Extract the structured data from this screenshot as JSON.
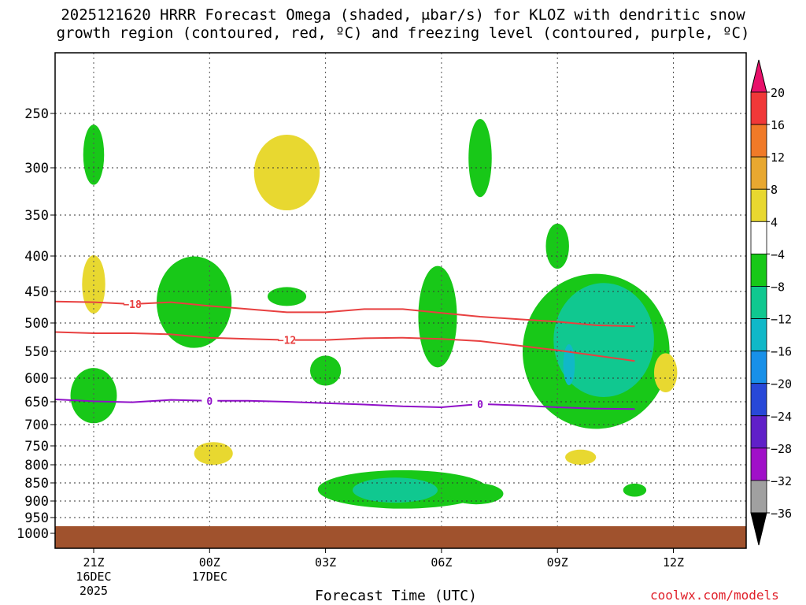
{
  "title": {
    "line1": "2025121620 HRRR Forecast Omega (shaded, μbar/s) for KLOZ with dendritic snow",
    "line2": "growth region (contoured, red, ºC) and freezing level (contoured, purple, ºC)"
  },
  "xlabel": "Forecast Time (UTC)",
  "credit": "coolwx.com/models",
  "chart_data": {
    "type": "heatmap",
    "title": "2025121620 HRRR Forecast Omega (shaded, μbar/s) for KLOZ with dendritic snow growth region (contoured, red, ºC) and freezing level (contoured, purple, ºC)",
    "xlabel": "Forecast Time (UTC)",
    "ylabel": "",
    "y_levels": [
      "250",
      "300",
      "350",
      "400",
      "450",
      "500",
      "550",
      "600",
      "650",
      "700",
      "750",
      "800",
      "850",
      "900",
      "950",
      "1000"
    ],
    "x_ticks": [
      {
        "label": "21Z",
        "sub1": "16DEC",
        "sub2": "2025"
      },
      {
        "label": "00Z",
        "sub1": "17DEC",
        "sub2": ""
      },
      {
        "label": "03Z",
        "sub1": "",
        "sub2": ""
      },
      {
        "label": "06Z",
        "sub1": "",
        "sub2": ""
      },
      {
        "label": "09Z",
        "sub1": "",
        "sub2": ""
      },
      {
        "label": "12Z",
        "sub1": "",
        "sub2": ""
      }
    ],
    "colorbar": {
      "labels": [
        "20",
        "16",
        "12",
        "8",
        "4",
        "−4",
        "−8",
        "−12",
        "−16",
        "−20",
        "−24",
        "−28",
        "−32",
        "−36"
      ],
      "colors": [
        "#e8106a",
        "#f03838",
        "#f07a28",
        "#e8a830",
        "#e8d830",
        "#ffffff",
        "#18c818",
        "#10c890",
        "#10b8c8",
        "#1890e8",
        "#2848d8",
        "#6020c8",
        "#a010c8",
        "#a0a0a0",
        "#000000"
      ]
    },
    "contours": [
      {
        "name": "-18",
        "color": "#e84040",
        "label_hour": 1.0,
        "points": [
          [
            -1,
            466
          ],
          [
            0,
            467
          ],
          [
            1,
            470
          ],
          [
            2,
            467
          ],
          [
            3,
            473
          ],
          [
            4,
            478
          ],
          [
            5,
            483
          ],
          [
            6,
            483
          ],
          [
            7,
            478
          ],
          [
            8,
            478
          ],
          [
            9,
            484
          ],
          [
            10,
            490
          ],
          [
            11,
            494
          ],
          [
            12,
            498
          ],
          [
            13,
            504
          ],
          [
            14,
            506
          ]
        ]
      },
      {
        "name": "-12",
        "color": "#e84040",
        "label_hour": 5.0,
        "points": [
          [
            -1,
            516
          ],
          [
            0,
            518
          ],
          [
            1,
            518
          ],
          [
            2,
            520
          ],
          [
            3,
            526
          ],
          [
            4,
            528
          ],
          [
            5,
            530
          ],
          [
            6,
            530
          ],
          [
            7,
            527
          ],
          [
            8,
            526
          ],
          [
            9,
            528
          ],
          [
            10,
            532
          ],
          [
            11,
            540
          ],
          [
            12,
            548
          ],
          [
            13,
            558
          ],
          [
            14,
            568
          ]
        ]
      },
      {
        "name": "0",
        "color": "#9010c8",
        "label_hour": 3.0,
        "points": [
          [
            -1,
            645
          ],
          [
            0,
            649
          ],
          [
            1,
            651
          ],
          [
            2,
            646
          ],
          [
            3,
            648
          ],
          [
            4,
            648
          ],
          [
            5,
            650
          ],
          [
            6,
            653
          ],
          [
            7,
            656
          ],
          [
            8,
            660
          ],
          [
            9,
            662
          ],
          [
            10,
            655
          ],
          [
            11,
            658
          ],
          [
            12,
            662
          ],
          [
            13,
            665
          ],
          [
            14,
            666
          ]
        ]
      },
      {
        "name": "0",
        "color": "#9010c8",
        "label_hour": 10.0,
        "points": []
      }
    ],
    "blobs": [
      {
        "level": "-4",
        "color": "#18c818",
        "hour": 0.0,
        "lev": 288,
        "rx_h": 0.27,
        "ry_lev": 30
      },
      {
        "level": "4",
        "color": "#e8d830",
        "hour": 0.0,
        "lev": 440,
        "rx_h": 0.3,
        "ry_lev": 45
      },
      {
        "level": "-4",
        "color": "#18c818",
        "hour": 0.0,
        "lev": 637,
        "rx_h": 0.6,
        "ry_lev": 60
      },
      {
        "level": "-4",
        "color": "#18c818",
        "hour": 2.6,
        "lev": 467,
        "rx_h": 0.97,
        "ry_lev": 77
      },
      {
        "level": "4",
        "color": "#e8d830",
        "hour": 3.1,
        "lev": 770,
        "rx_h": 0.5,
        "ry_lev": 30
      },
      {
        "level": "4",
        "color": "#e8d830",
        "hour": 5.0,
        "lev": 305,
        "rx_h": 0.85,
        "ry_lev": 40
      },
      {
        "level": "-4",
        "color": "#18c818",
        "hour": 5.0,
        "lev": 458,
        "rx_h": 0.5,
        "ry_lev": 15
      },
      {
        "level": "-4",
        "color": "#18c818",
        "hour": 6.0,
        "lev": 586,
        "rx_h": 0.4,
        "ry_lev": 30
      },
      {
        "level": "-4",
        "color": "#18c818",
        "hour": 10.0,
        "lev": 291,
        "rx_h": 0.3,
        "ry_lev": 40
      },
      {
        "level": "-4",
        "color": "#18c818",
        "hour": 8.9,
        "lev": 490,
        "rx_h": 0.5,
        "ry_lev": 90
      },
      {
        "level": "-4",
        "color": "#18c818",
        "hour": 8.0,
        "lev": 868,
        "rx_h": 2.2,
        "ry_lev": 55
      },
      {
        "level": "-8",
        "color": "#10c890",
        "hour": 7.8,
        "lev": 870,
        "rx_h": 1.1,
        "ry_lev": 35
      },
      {
        "level": "-4",
        "color": "#18c818",
        "hour": 9.9,
        "lev": 880,
        "rx_h": 0.7,
        "ry_lev": 30
      },
      {
        "level": "-4",
        "color": "#18c818",
        "hour": 12.0,
        "lev": 388,
        "rx_h": 0.3,
        "ry_lev": 30
      },
      {
        "level": "-4",
        "color": "#18c818",
        "hour": 13.0,
        "lev": 550,
        "rx_h": 1.9,
        "ry_lev": 160
      },
      {
        "level": "-8",
        "color": "#10c890",
        "hour": 13.2,
        "lev": 530,
        "rx_h": 1.3,
        "ry_lev": 110
      },
      {
        "level": "-12",
        "color": "#10b8c8",
        "hour": 12.3,
        "lev": 575,
        "rx_h": 0.15,
        "ry_lev": 40
      },
      {
        "level": "4",
        "color": "#e8d830",
        "hour": 12.6,
        "lev": 780,
        "rx_h": 0.4,
        "ry_lev": 20
      },
      {
        "level": "-4",
        "color": "#18c818",
        "hour": 14.0,
        "lev": 870,
        "rx_h": 0.3,
        "ry_lev": 18
      },
      {
        "level": "4",
        "color": "#e8d830",
        "hour": 14.8,
        "lev": 590,
        "rx_h": 0.3,
        "ry_lev": 40
      }
    ]
  }
}
